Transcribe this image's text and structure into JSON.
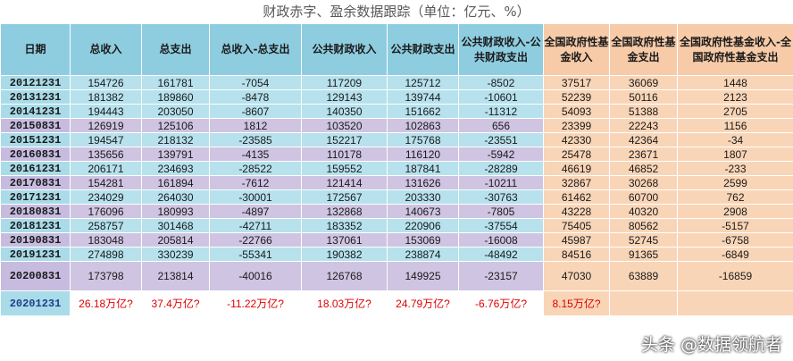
{
  "title": "财政赤字、盈余数据跟踪（单位：亿元、%）",
  "headers": [
    "日期",
    "总收入",
    "总支出",
    "总收入-总支出",
    "公共财政收入",
    "公共财政支出",
    "公共财政收入-公共财政支出",
    "全国政府性基金收入",
    "全国政府性基金支出",
    "全国政府性基金收入-全国政府性基金支出"
  ],
  "rows": [
    [
      "20121231",
      "154726",
      "161781",
      "-7054",
      "117209",
      "125712",
      "-8502",
      "37517",
      "36069",
      "1448"
    ],
    [
      "20131231",
      "181382",
      "189860",
      "-8478",
      "129143",
      "139744",
      "-10601",
      "52239",
      "50116",
      "2123"
    ],
    [
      "20141231",
      "194443",
      "203050",
      "-8607",
      "140350",
      "151662",
      "-11312",
      "54093",
      "51388",
      "2705"
    ],
    [
      "20150831",
      "126919",
      "125106",
      "1812",
      "103520",
      "102863",
      "656",
      "23399",
      "22243",
      "1156"
    ],
    [
      "20151231",
      "194547",
      "218132",
      "-23585",
      "152217",
      "175768",
      "-23551",
      "42330",
      "42364",
      "-34"
    ],
    [
      "20160831",
      "135656",
      "139791",
      "-4135",
      "110178",
      "116120",
      "-5942",
      "25478",
      "23671",
      "1807"
    ],
    [
      "20161231",
      "206171",
      "234693",
      "-28522",
      "159552",
      "187841",
      "-28289",
      "46619",
      "46852",
      "-233"
    ],
    [
      "20170831",
      "154281",
      "161894",
      "-7612",
      "121414",
      "131626",
      "-10211",
      "32867",
      "30268",
      "2599"
    ],
    [
      "20171231",
      "234029",
      "264030",
      "-30001",
      "172567",
      "203330",
      "-30763",
      "61462",
      "60700",
      "762"
    ],
    [
      "20180831",
      "176096",
      "180993",
      "-4897",
      "132868",
      "140673",
      "-7805",
      "43228",
      "40320",
      "2908"
    ],
    [
      "20181231",
      "258757",
      "301468",
      "-42711",
      "183352",
      "220906",
      "-37554",
      "75405",
      "80562",
      "-5157"
    ],
    [
      "20190831",
      "183048",
      "205814",
      "-22766",
      "137061",
      "153069",
      "-16008",
      "45987",
      "52745",
      "-6758"
    ],
    [
      "20191231",
      "274898",
      "330239",
      "-55341",
      "190382",
      "238874",
      "-48492",
      "84516",
      "91365",
      "-6849"
    ],
    [
      "20200831",
      "173798",
      "213814",
      "-40016",
      "126768",
      "149925",
      "-23157",
      "47030",
      "63889",
      "-16859"
    ],
    [
      "20201231",
      "26.18万亿?",
      "37.4万亿?",
      "-11.22万亿?",
      "18.03万亿?",
      "24.79万亿?",
      "-6.76万亿?",
      "8.15万亿?",
      "",
      ""
    ]
  ],
  "watermark": "头条 @数据领航者",
  "colors": {
    "header_blue": "#8ecde0",
    "header_orange": "#f7cba8",
    "row_blue": "#b6e1ed",
    "row_purple": "#cfc4e2",
    "forecast_red": "#e00000"
  }
}
